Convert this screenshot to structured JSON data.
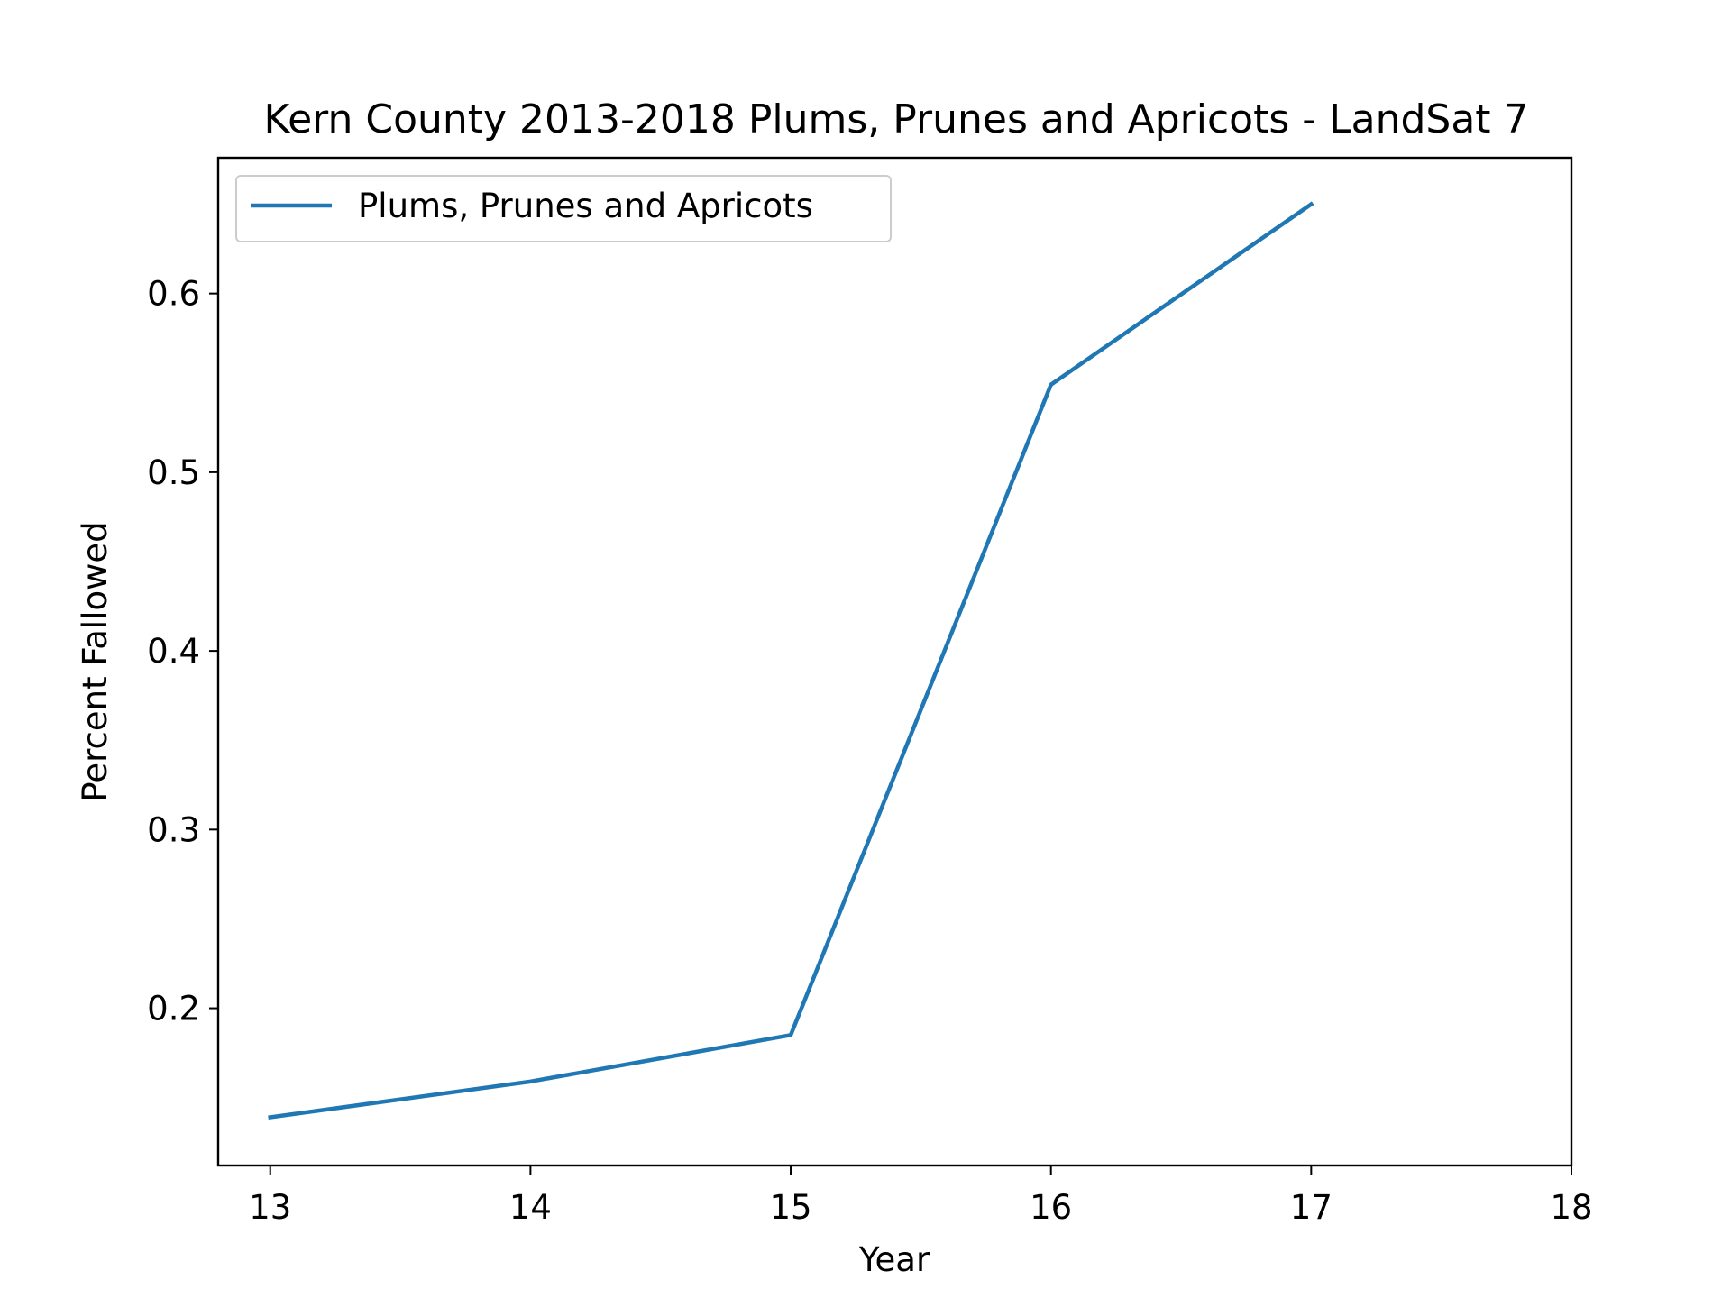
{
  "chart_data": {
    "type": "line",
    "title": "Kern County 2013-2018 Plums, Prunes and Apricots - LandSat 7",
    "xlabel": "Year",
    "ylabel": "Percent Fallowed",
    "x": [
      13,
      14,
      15,
      16,
      17
    ],
    "series": [
      {
        "name": "Plums, Prunes and Apricots",
        "color": "#1f77b4",
        "values": [
          0.139,
          0.159,
          0.185,
          0.549,
          0.65
        ]
      }
    ],
    "xlim": [
      12.8,
      18
    ],
    "ylim": [
      0.112,
      0.676
    ],
    "xticks": [
      13,
      14,
      15,
      16,
      17,
      18
    ],
    "xtick_labels": [
      "13",
      "14",
      "15",
      "16",
      "17",
      "18"
    ],
    "yticks": [
      0.2,
      0.3,
      0.4,
      0.5,
      0.6
    ],
    "ytick_labels": [
      "0.2",
      "0.3",
      "0.4",
      "0.5",
      "0.6"
    ],
    "grid": false,
    "legend_position": "upper-left"
  }
}
